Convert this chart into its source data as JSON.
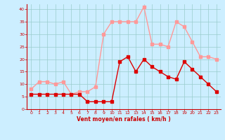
{
  "hours": [
    0,
    1,
    2,
    3,
    4,
    5,
    6,
    7,
    8,
    9,
    10,
    11,
    12,
    13,
    14,
    15,
    16,
    17,
    18,
    19,
    20,
    21,
    22,
    23
  ],
  "wind_avg": [
    6,
    6,
    6,
    6,
    6,
    6,
    6,
    3,
    3,
    3,
    3,
    19,
    21,
    15,
    20,
    17,
    15,
    13,
    12,
    19,
    16,
    13,
    10,
    7
  ],
  "wind_gust": [
    8,
    11,
    11,
    10,
    11,
    6,
    7,
    7,
    9,
    30,
    35,
    35,
    35,
    35,
    41,
    26,
    26,
    25,
    35,
    33,
    27,
    21,
    21,
    20
  ],
  "xlabel": "Vent moyen/en rafales ( km/h )",
  "ylim": [
    0,
    42
  ],
  "xlim": [
    -0.5,
    23.5
  ],
  "yticks": [
    0,
    5,
    10,
    15,
    20,
    25,
    30,
    35,
    40
  ],
  "xticks": [
    0,
    1,
    2,
    3,
    4,
    5,
    6,
    7,
    8,
    9,
    10,
    11,
    12,
    13,
    14,
    15,
    16,
    17,
    18,
    19,
    20,
    21,
    22,
    23
  ],
  "avg_color": "#dd0000",
  "gust_color": "#ff9999",
  "bg_color": "#cceeff",
  "grid_color": "#99cccc",
  "label_color": "#cc0000",
  "spine_color": "#cc0000"
}
